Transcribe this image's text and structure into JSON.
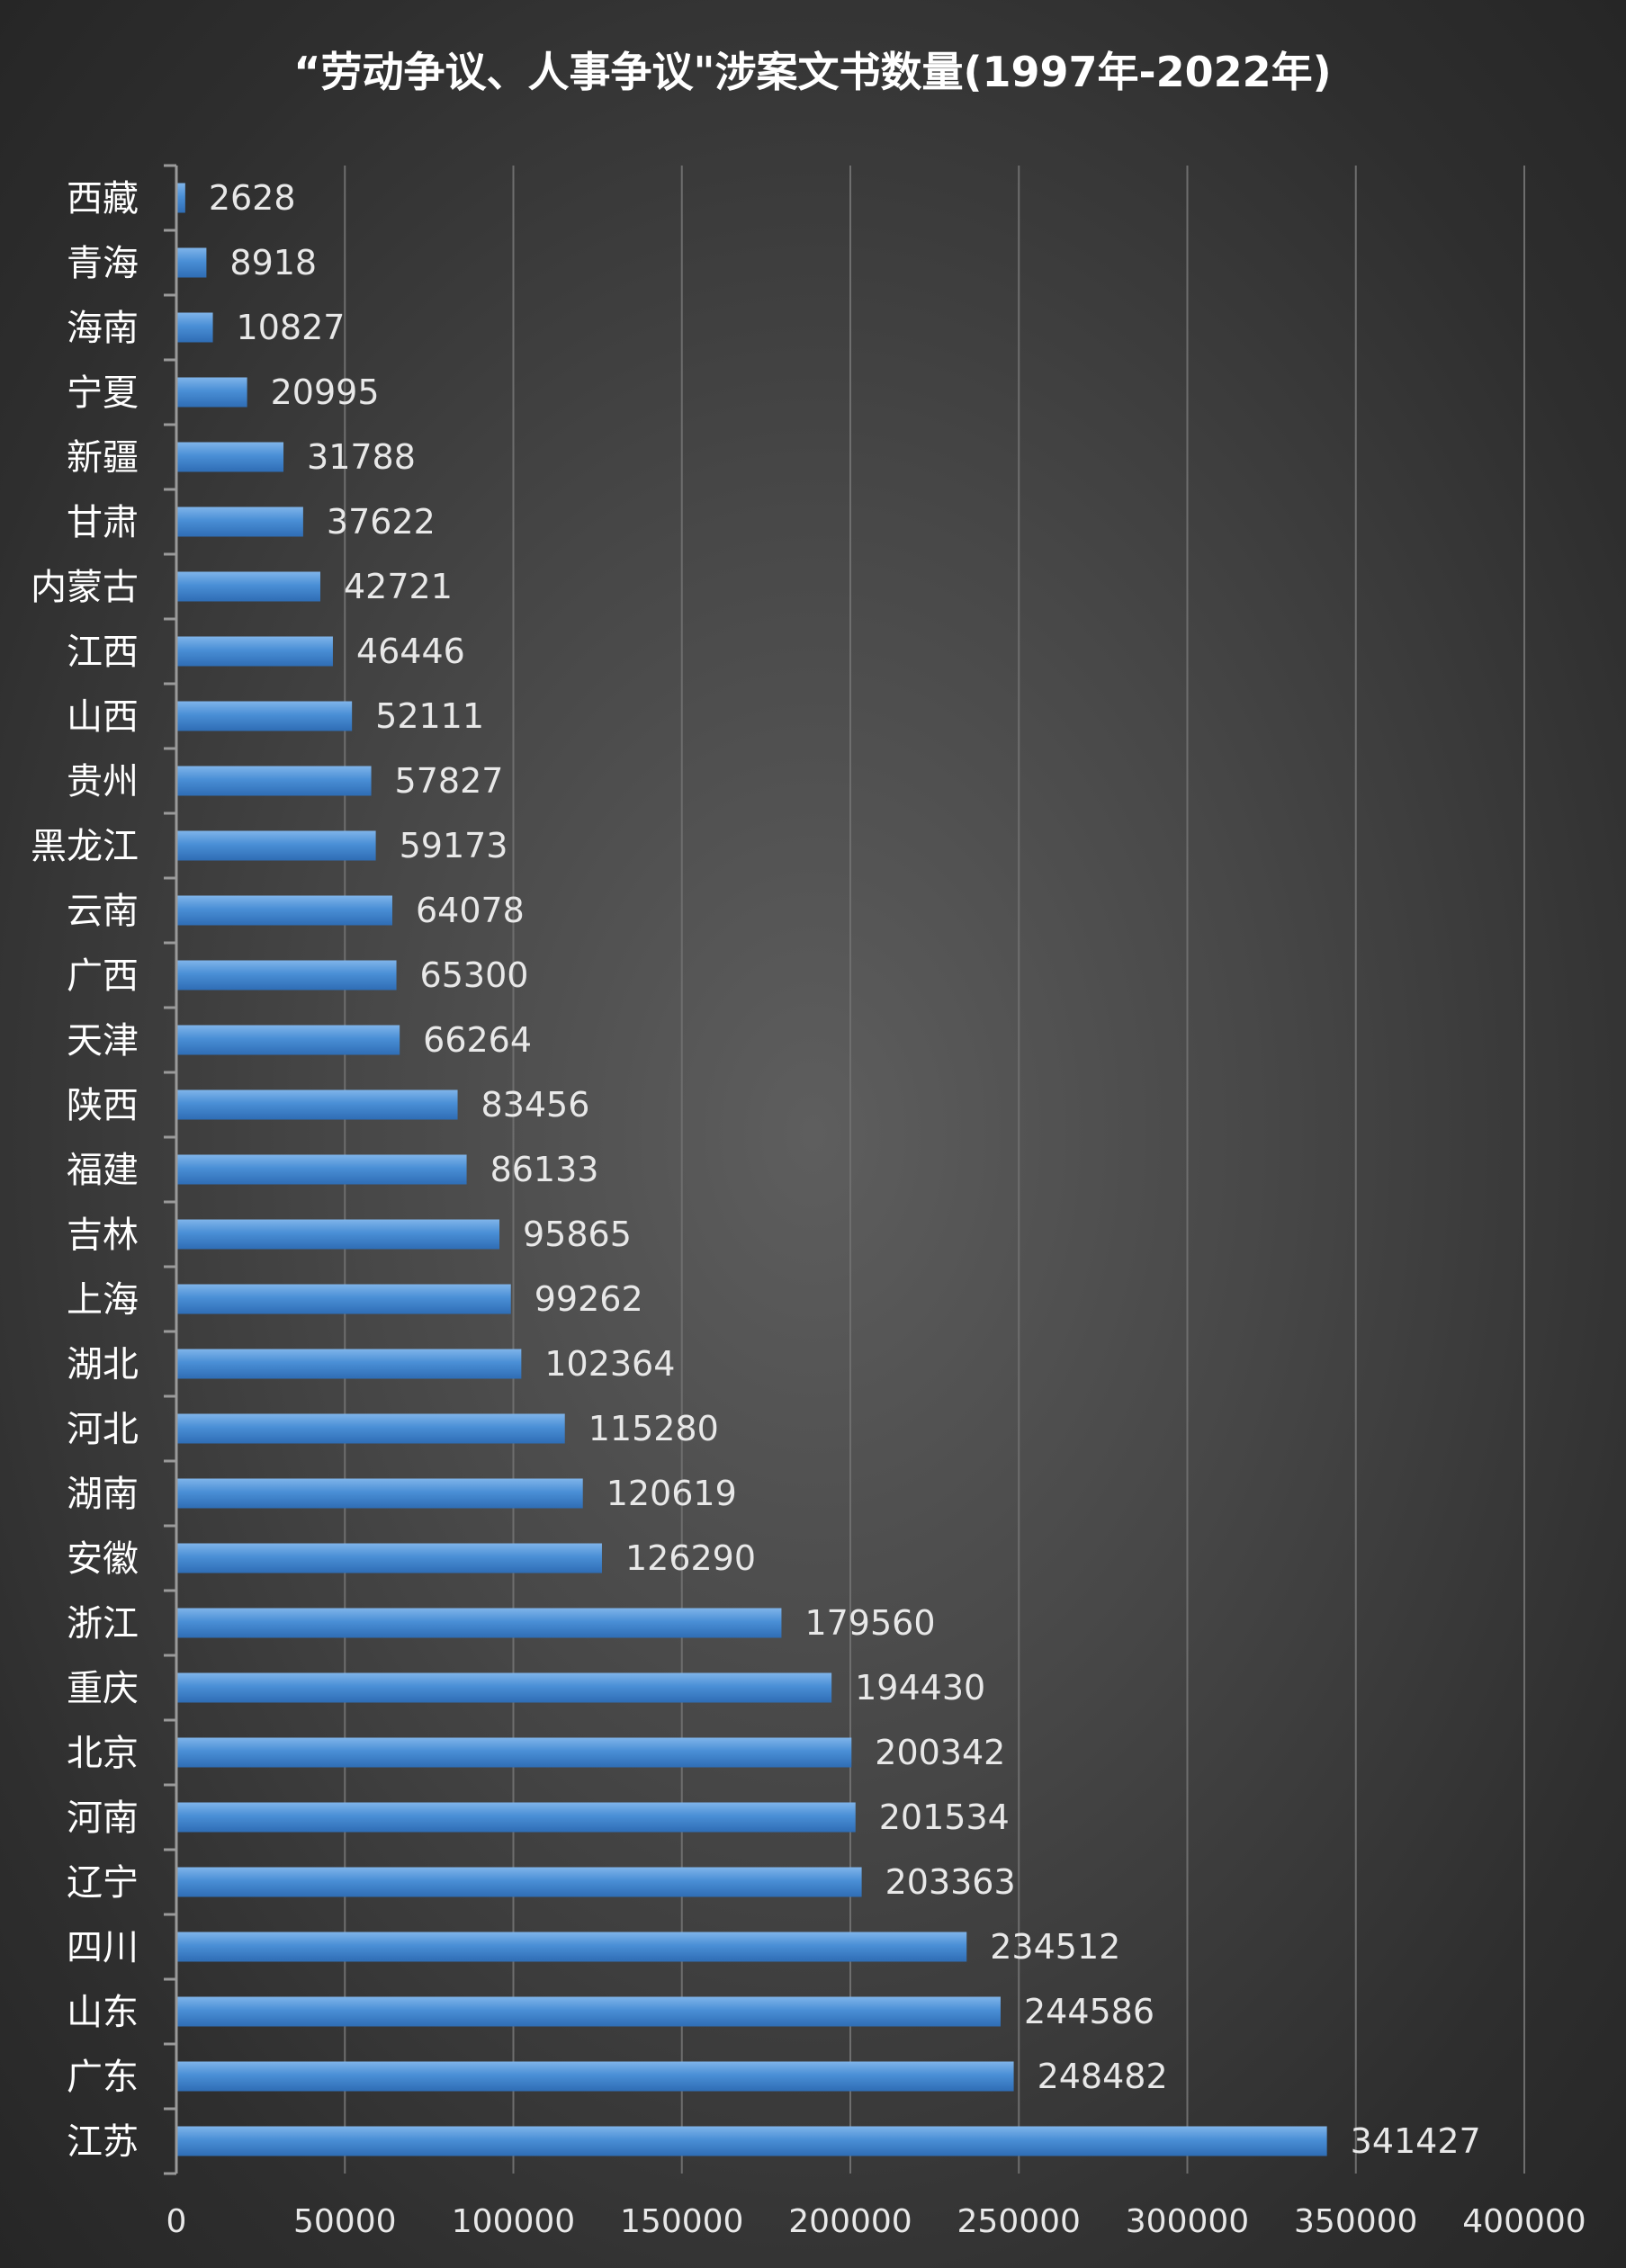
{
  "chart_data": {
    "type": "bar",
    "orientation": "horizontal",
    "title": "“劳动争议、人事争议\"涉案文书数量(1997年-2022年)",
    "categories": [
      "西藏",
      "青海",
      "海南",
      "宁夏",
      "新疆",
      "甘肃",
      "内蒙古",
      "江西",
      "山西",
      "贵州",
      "黑龙江",
      "云南",
      "广西",
      "天津",
      "陕西",
      "福建",
      "吉林",
      "上海",
      "湖北",
      "河北",
      "湖南",
      "安徽",
      "浙江",
      "重庆",
      "北京",
      "河南",
      "辽宁",
      "四川",
      "山东",
      "广东",
      "江苏"
    ],
    "values": [
      2628,
      8918,
      10827,
      20995,
      31788,
      37622,
      42721,
      46446,
      52111,
      57827,
      59173,
      64078,
      65300,
      66264,
      83456,
      86133,
      95865,
      99262,
      102364,
      115280,
      120619,
      126290,
      179560,
      194430,
      200342,
      201534,
      203363,
      234512,
      244586,
      248482,
      341427
    ],
    "xlim": [
      0,
      400000
    ],
    "xticks": [
      "0",
      "50000",
      "100000",
      "150000",
      "200000",
      "250000",
      "300000",
      "350000",
      "400000"
    ],
    "grid": true,
    "colors": {
      "bar_top": "#7fb4ea",
      "bar_mid": "#4a8fd6",
      "bar_bottom": "#2f6db5",
      "grid": "#6e6e6e",
      "axis": "#9a9a9a"
    }
  }
}
